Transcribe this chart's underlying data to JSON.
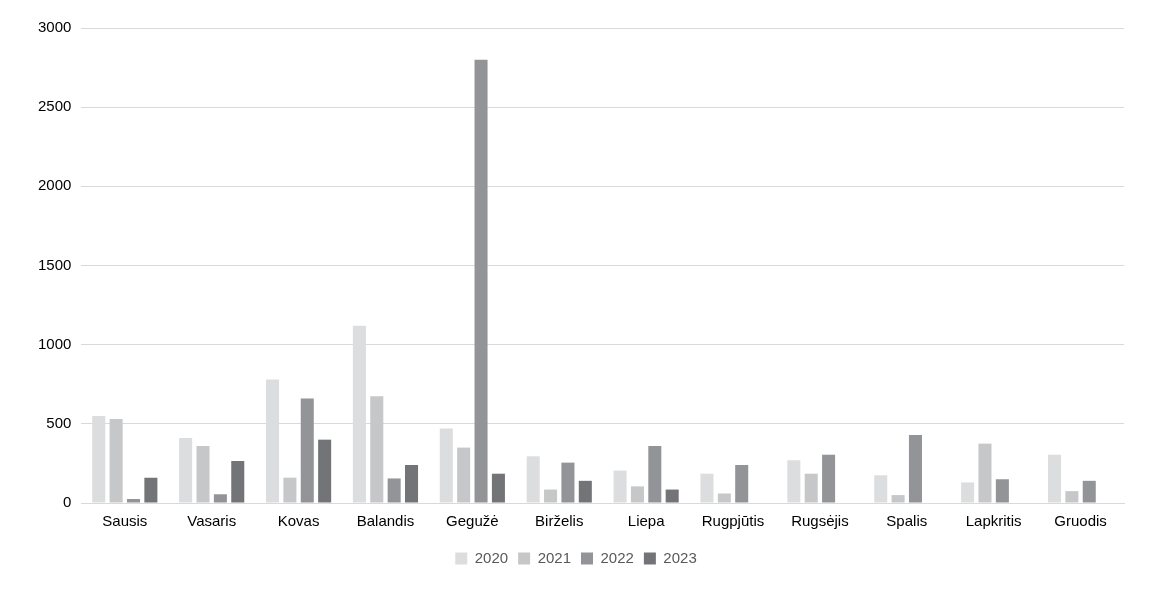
{
  "chart_data": {
    "type": "bar",
    "categories": [
      "Sausis",
      "Vasaris",
      "Kovas",
      "Balandis",
      "Gegužė",
      "Birželis",
      "Liepa",
      "Rugpjūtis",
      "Rugsėjis",
      "Spalis",
      "Lapkritis",
      "Gruodis"
    ],
    "series": [
      {
        "name": "2020",
        "color": "#dcdddf",
        "values": [
          550,
          410,
          780,
          1120,
          470,
          295,
          205,
          185,
          270,
          175,
          130,
          305
        ]
      },
      {
        "name": "2021",
        "color": "#c6c7c9",
        "values": [
          530,
          360,
          160,
          675,
          350,
          85,
          105,
          60,
          185,
          50,
          375,
          75
        ]
      },
      {
        "name": "2022",
        "color": "#939497",
        "values": [
          25,
          55,
          660,
          155,
          2800,
          255,
          360,
          240,
          305,
          430,
          150,
          140
        ]
      },
      {
        "name": "2023",
        "color": "#737477",
        "values": [
          160,
          265,
          400,
          240,
          185,
          140,
          85,
          null,
          null,
          null,
          null,
          null
        ]
      }
    ],
    "ylim": [
      0,
      3000
    ],
    "yticks": [
      0,
      500,
      1000,
      1500,
      2000,
      2500,
      3000
    ],
    "grid": "y",
    "legend": "bottom"
  }
}
